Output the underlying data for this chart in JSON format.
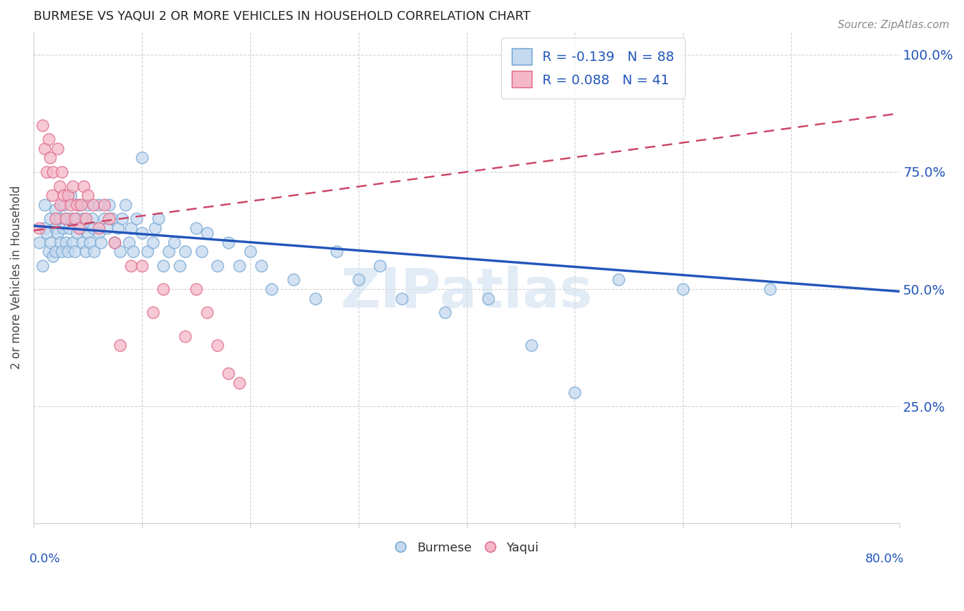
{
  "title": "BURMESE VS YAQUI 2 OR MORE VEHICLES IN HOUSEHOLD CORRELATION CHART",
  "source_text": "Source: ZipAtlas.com",
  "ylabel": "2 or more Vehicles in Household",
  "ytick_labels": [
    "",
    "25.0%",
    "50.0%",
    "75.0%",
    "100.0%"
  ],
  "xmin": 0.0,
  "xmax": 0.8,
  "ymin": 0.0,
  "ymax": 1.05,
  "burmese_R": -0.139,
  "burmese_N": 88,
  "yaqui_R": 0.088,
  "yaqui_N": 41,
  "burmese_dot_color": "#c5d9f0",
  "burmese_edge_color": "#7aaad4",
  "yaqui_dot_color": "#f5b8c8",
  "yaqui_edge_color": "#e07090",
  "burmese_line_color": "#2255bb",
  "yaqui_line_color": "#cc4466",
  "legend_blue": "#2255bb",
  "watermark_color": "#d0e0f0",
  "burmese_line_x0": 0.0,
  "burmese_line_y0": 0.635,
  "burmese_line_x1": 0.8,
  "burmese_line_y1": 0.495,
  "yaqui_line_x0": 0.0,
  "yaqui_line_y0": 0.625,
  "yaqui_line_x1": 0.8,
  "yaqui_line_y1": 0.875,
  "burmese_x": [
    0.005,
    0.008,
    0.01,
    0.01,
    0.012,
    0.014,
    0.015,
    0.016,
    0.018,
    0.02,
    0.02,
    0.02,
    0.022,
    0.024,
    0.025,
    0.026,
    0.027,
    0.028,
    0.03,
    0.03,
    0.032,
    0.033,
    0.034,
    0.035,
    0.036,
    0.038,
    0.04,
    0.04,
    0.042,
    0.044,
    0.045,
    0.046,
    0.048,
    0.05,
    0.05,
    0.052,
    0.054,
    0.055,
    0.056,
    0.06,
    0.06,
    0.062,
    0.065,
    0.068,
    0.07,
    0.072,
    0.075,
    0.078,
    0.08,
    0.082,
    0.085,
    0.088,
    0.09,
    0.092,
    0.095,
    0.1,
    0.1,
    0.105,
    0.11,
    0.112,
    0.115,
    0.12,
    0.125,
    0.13,
    0.135,
    0.14,
    0.15,
    0.155,
    0.16,
    0.17,
    0.18,
    0.19,
    0.2,
    0.21,
    0.22,
    0.24,
    0.26,
    0.28,
    0.3,
    0.32,
    0.34,
    0.38,
    0.42,
    0.46,
    0.5,
    0.54,
    0.6,
    0.68
  ],
  "burmese_y": [
    0.6,
    0.55,
    0.63,
    0.68,
    0.62,
    0.58,
    0.65,
    0.6,
    0.57,
    0.63,
    0.58,
    0.67,
    0.62,
    0.65,
    0.6,
    0.58,
    0.63,
    0.68,
    0.6,
    0.65,
    0.58,
    0.63,
    0.7,
    0.65,
    0.6,
    0.58,
    0.65,
    0.62,
    0.68,
    0.63,
    0.6,
    0.65,
    0.58,
    0.62,
    0.68,
    0.6,
    0.65,
    0.63,
    0.58,
    0.62,
    0.68,
    0.6,
    0.65,
    0.63,
    0.68,
    0.65,
    0.6,
    0.63,
    0.58,
    0.65,
    0.68,
    0.6,
    0.63,
    0.58,
    0.65,
    0.78,
    0.62,
    0.58,
    0.6,
    0.63,
    0.65,
    0.55,
    0.58,
    0.6,
    0.55,
    0.58,
    0.63,
    0.58,
    0.62,
    0.55,
    0.6,
    0.55,
    0.58,
    0.55,
    0.5,
    0.52,
    0.48,
    0.58,
    0.52,
    0.55,
    0.48,
    0.45,
    0.48,
    0.38,
    0.28,
    0.52,
    0.5,
    0.5
  ],
  "yaqui_x": [
    0.005,
    0.008,
    0.01,
    0.012,
    0.014,
    0.015,
    0.017,
    0.018,
    0.02,
    0.022,
    0.024,
    0.025,
    0.026,
    0.028,
    0.03,
    0.032,
    0.034,
    0.036,
    0.038,
    0.04,
    0.042,
    0.044,
    0.046,
    0.048,
    0.05,
    0.055,
    0.06,
    0.065,
    0.07,
    0.075,
    0.08,
    0.09,
    0.1,
    0.11,
    0.12,
    0.14,
    0.15,
    0.16,
    0.17,
    0.18,
    0.19
  ],
  "yaqui_y": [
    0.63,
    0.85,
    0.8,
    0.75,
    0.82,
    0.78,
    0.7,
    0.75,
    0.65,
    0.8,
    0.72,
    0.68,
    0.75,
    0.7,
    0.65,
    0.7,
    0.68,
    0.72,
    0.65,
    0.68,
    0.63,
    0.68,
    0.72,
    0.65,
    0.7,
    0.68,
    0.63,
    0.68,
    0.65,
    0.6,
    0.38,
    0.55,
    0.55,
    0.45,
    0.5,
    0.4,
    0.5,
    0.45,
    0.38,
    0.32,
    0.3
  ]
}
